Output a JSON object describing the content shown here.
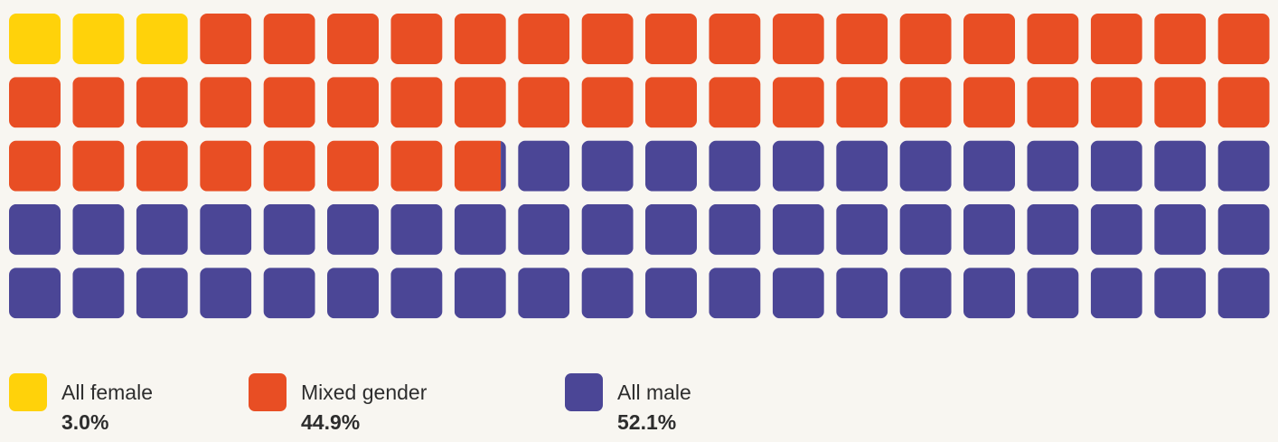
{
  "chart_data": {
    "type": "waffle",
    "series": [
      {
        "name": "All female",
        "color": "#ffd20a",
        "value": 3.0,
        "value_label": "3.0%"
      },
      {
        "name": "Mixed gender",
        "color": "#e84e24",
        "value": 44.9,
        "value_label": "44.9%"
      },
      {
        "name": "All male",
        "color": "#4b4696",
        "value": 52.1,
        "value_label": "52.1%"
      }
    ]
  }
}
